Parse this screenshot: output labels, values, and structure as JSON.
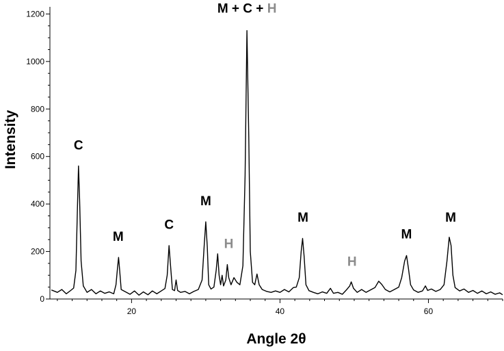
{
  "chart_data": {
    "type": "line",
    "xlabel": "Angle 2θ",
    "ylabel": "Intensity",
    "xlim": [
      9,
      70
    ],
    "ylim": [
      0,
      1230
    ],
    "x_ticks": [
      20,
      40,
      60
    ],
    "y_ticks": [
      0,
      200,
      400,
      600,
      800,
      1000,
      1200
    ],
    "grid": false,
    "line_color": "#000000",
    "series": [
      {
        "points": [
          [
            9.2,
            38
          ],
          [
            10,
            28
          ],
          [
            10.6,
            40
          ],
          [
            11.2,
            22
          ],
          [
            11.8,
            36
          ],
          [
            12.2,
            46
          ],
          [
            12.5,
            120
          ],
          [
            12.7,
            380
          ],
          [
            12.85,
            560
          ],
          [
            13.0,
            420
          ],
          [
            13.2,
            160
          ],
          [
            13.5,
            55
          ],
          [
            14,
            28
          ],
          [
            14.6,
            40
          ],
          [
            15.2,
            22
          ],
          [
            15.8,
            34
          ],
          [
            16.4,
            24
          ],
          [
            17,
            30
          ],
          [
            17.6,
            22
          ],
          [
            17.9,
            60
          ],
          [
            18.1,
            130
          ],
          [
            18.25,
            175
          ],
          [
            18.4,
            120
          ],
          [
            18.6,
            40
          ],
          [
            19.2,
            30
          ],
          [
            19.8,
            20
          ],
          [
            20.4,
            34
          ],
          [
            21,
            16
          ],
          [
            21.6,
            30
          ],
          [
            22.2,
            18
          ],
          [
            22.8,
            34
          ],
          [
            23.4,
            22
          ],
          [
            24,
            34
          ],
          [
            24.5,
            44
          ],
          [
            24.8,
            100
          ],
          [
            25.05,
            225
          ],
          [
            25.25,
            140
          ],
          [
            25.5,
            40
          ],
          [
            25.8,
            35
          ],
          [
            26.0,
            80
          ],
          [
            26.2,
            36
          ],
          [
            26.6,
            28
          ],
          [
            27.2,
            32
          ],
          [
            27.8,
            22
          ],
          [
            28.4,
            32
          ],
          [
            29.0,
            40
          ],
          [
            29.5,
            80
          ],
          [
            29.8,
            230
          ],
          [
            30.0,
            325
          ],
          [
            30.2,
            220
          ],
          [
            30.4,
            60
          ],
          [
            30.7,
            42
          ],
          [
            31.1,
            50
          ],
          [
            31.4,
            120
          ],
          [
            31.6,
            190
          ],
          [
            31.8,
            100
          ],
          [
            32.0,
            60
          ],
          [
            32.2,
            100
          ],
          [
            32.4,
            55
          ],
          [
            32.7,
            80
          ],
          [
            32.9,
            145
          ],
          [
            33.1,
            90
          ],
          [
            33.4,
            60
          ],
          [
            33.8,
            90
          ],
          [
            34.2,
            70
          ],
          [
            34.6,
            60
          ],
          [
            35.0,
            140
          ],
          [
            35.3,
            520
          ],
          [
            35.55,
            1130
          ],
          [
            35.8,
            680
          ],
          [
            36.0,
            200
          ],
          [
            36.3,
            70
          ],
          [
            36.6,
            60
          ],
          [
            36.9,
            105
          ],
          [
            37.2,
            60
          ],
          [
            37.6,
            40
          ],
          [
            38.2,
            32
          ],
          [
            38.8,
            28
          ],
          [
            39.4,
            34
          ],
          [
            40.0,
            28
          ],
          [
            40.6,
            40
          ],
          [
            41.2,
            30
          ],
          [
            41.8,
            48
          ],
          [
            42.2,
            50
          ],
          [
            42.6,
            90
          ],
          [
            42.85,
            200
          ],
          [
            43.05,
            255
          ],
          [
            43.25,
            180
          ],
          [
            43.5,
            60
          ],
          [
            43.9,
            35
          ],
          [
            44.5,
            28
          ],
          [
            45.1,
            22
          ],
          [
            45.7,
            30
          ],
          [
            46.3,
            24
          ],
          [
            46.8,
            45
          ],
          [
            47.2,
            24
          ],
          [
            47.8,
            28
          ],
          [
            48.4,
            20
          ],
          [
            49.0,
            40
          ],
          [
            49.4,
            55
          ],
          [
            49.6,
            72
          ],
          [
            49.9,
            45
          ],
          [
            50.4,
            28
          ],
          [
            51.0,
            40
          ],
          [
            51.6,
            28
          ],
          [
            52.2,
            38
          ],
          [
            52.8,
            48
          ],
          [
            53.3,
            75
          ],
          [
            53.7,
            62
          ],
          [
            54.2,
            40
          ],
          [
            54.8,
            30
          ],
          [
            55.4,
            40
          ],
          [
            56.0,
            50
          ],
          [
            56.4,
            90
          ],
          [
            56.8,
            160
          ],
          [
            57.05,
            183
          ],
          [
            57.3,
            130
          ],
          [
            57.6,
            60
          ],
          [
            58.0,
            38
          ],
          [
            58.6,
            28
          ],
          [
            59.2,
            34
          ],
          [
            59.6,
            55
          ],
          [
            59.9,
            36
          ],
          [
            60.4,
            42
          ],
          [
            61.0,
            32
          ],
          [
            61.6,
            40
          ],
          [
            62.1,
            60
          ],
          [
            62.5,
            160
          ],
          [
            62.8,
            260
          ],
          [
            63.05,
            225
          ],
          [
            63.3,
            100
          ],
          [
            63.6,
            48
          ],
          [
            64.2,
            34
          ],
          [
            64.8,
            42
          ],
          [
            65.4,
            28
          ],
          [
            66.0,
            36
          ],
          [
            66.6,
            24
          ],
          [
            67.2,
            34
          ],
          [
            67.8,
            22
          ],
          [
            68.4,
            30
          ],
          [
            69.0,
            20
          ],
          [
            69.6,
            26
          ],
          [
            70.0,
            18
          ]
        ]
      }
    ],
    "annotations": [
      {
        "text": "C",
        "x": 12.85,
        "y": 630,
        "color": "#000000"
      },
      {
        "text": "M",
        "x": 18.2,
        "y": 245,
        "color": "#000000"
      },
      {
        "text": "C",
        "x": 25.05,
        "y": 295,
        "color": "#000000"
      },
      {
        "text": "M",
        "x": 30.0,
        "y": 395,
        "color": "#000000"
      },
      {
        "text": "H",
        "x": 33.1,
        "y": 215,
        "color": "#8c8c8c"
      },
      {
        "text": "M",
        "x": 43.1,
        "y": 325,
        "color": "#000000"
      },
      {
        "text": "H",
        "x": 49.7,
        "y": 140,
        "color": "#8c8c8c"
      },
      {
        "text": "M",
        "x": 57.05,
        "y": 255,
        "color": "#000000"
      },
      {
        "text": "M",
        "x": 63.0,
        "y": 325,
        "color": "#000000"
      }
    ],
    "main_annotation": {
      "parts": [
        {
          "text": "M + C + ",
          "color": "#000000"
        },
        {
          "text": "H",
          "color": "#8c8c8c"
        }
      ],
      "x": 35.55,
      "y": 1205
    }
  }
}
